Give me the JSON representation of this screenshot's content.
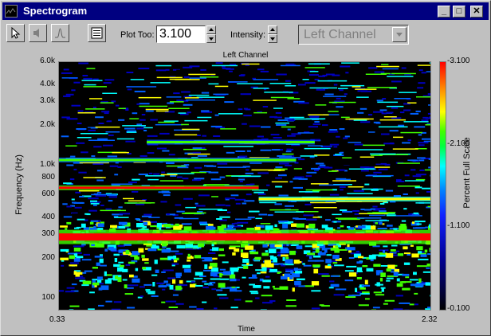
{
  "window": {
    "title": "Spectrogram"
  },
  "toolbar": {
    "plot_too_label": "Plot Too:",
    "plot_too_value": "3.100",
    "intensity_label": "Intensity:",
    "channel_value": "Left Channel"
  },
  "plot": {
    "title": "Left Channel",
    "ylabel": "Frequency (Hz)",
    "xlabel": "Time",
    "colorbar_label": "Percent Full Scale",
    "yticks": [
      "6.0k",
      "4.0k",
      "3.0k",
      "2.0k",
      "1.0k",
      "800",
      "600",
      "400",
      "300",
      "200",
      "100"
    ],
    "xticks": [
      "0.33",
      "2.32"
    ],
    "cticks": [
      "3.100",
      "2.100",
      "1.100",
      "0.100"
    ]
  },
  "chart_data": {
    "type": "heatmap",
    "title": "Left Channel",
    "xlabel": "Time",
    "ylabel": "Frequency (Hz)",
    "xlim": [
      0.33,
      2.32
    ],
    "ylim": [
      80,
      6000
    ],
    "yscale": "log",
    "colorbar": {
      "label": "Percent Full Scale",
      "range": [
        0.1,
        3.1
      ]
    },
    "colors": [
      "#000000",
      "#0000c0",
      "#0060ff",
      "#00ffff",
      "#40ff00",
      "#ffff00",
      "#ff0000"
    ],
    "bands": [
      {
        "freq": 290,
        "t_start": 0.33,
        "t_end": 2.32,
        "level": 3.1
      },
      {
        "freq": 680,
        "t_start": 0.33,
        "t_end": 1.4,
        "level": 2.8
      },
      {
        "freq": 560,
        "t_start": 1.4,
        "t_end": 2.32,
        "level": 2.6
      },
      {
        "freq": 1100,
        "t_start": 0.33,
        "t_end": 1.6,
        "level": 2.1
      },
      {
        "freq": 1500,
        "t_start": 0.8,
        "t_end": 1.7,
        "level": 2.0
      }
    ]
  }
}
